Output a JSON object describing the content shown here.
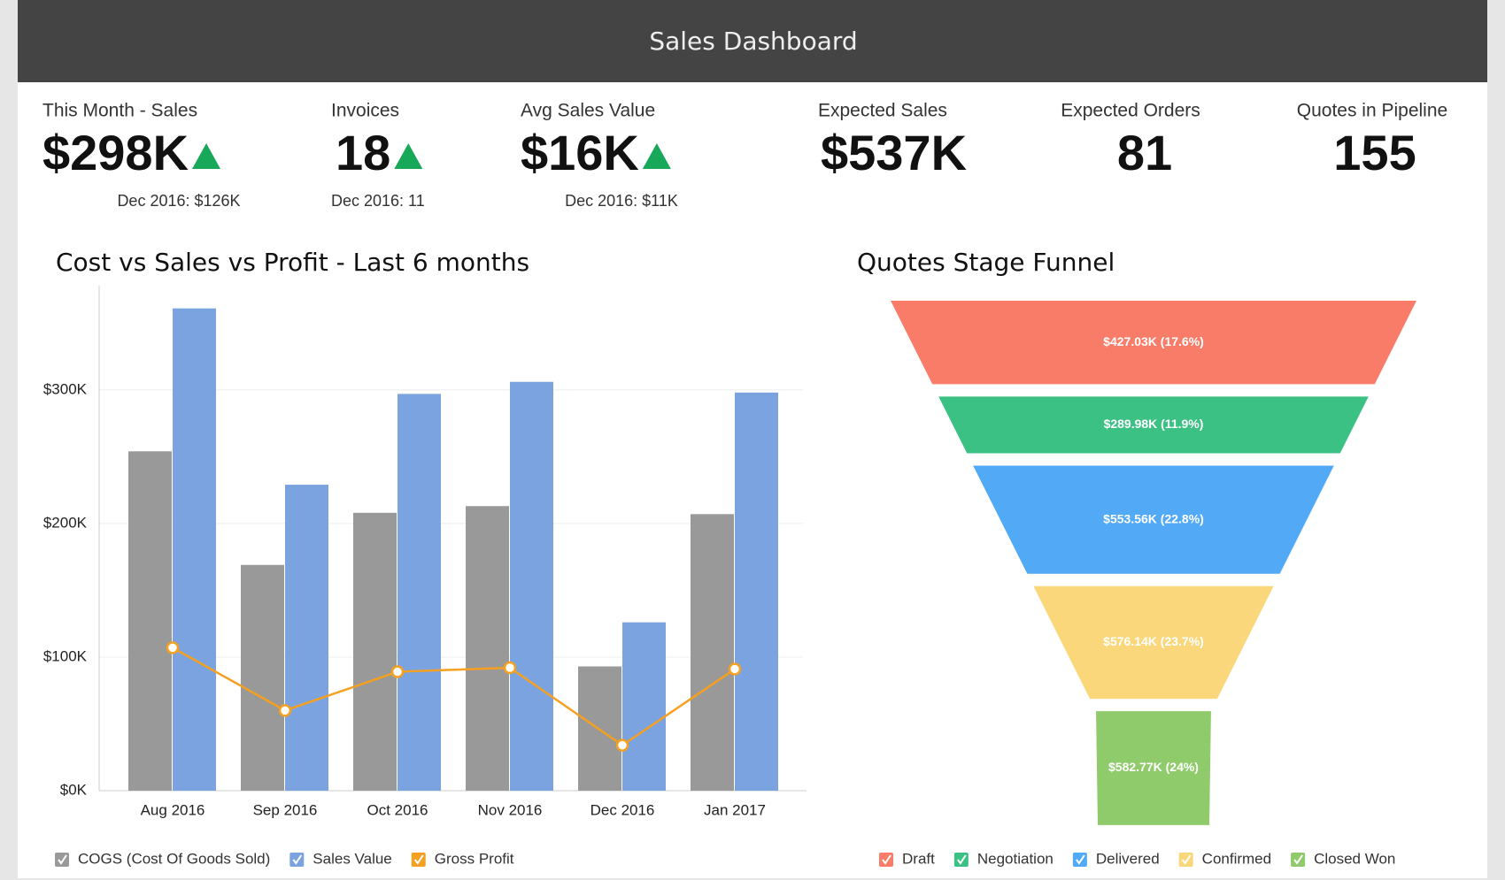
{
  "header": {
    "title": "Sales Dashboard"
  },
  "kpis": [
    {
      "label": "This Month - Sales",
      "value": "$298K",
      "previous": "Dec 2016: $126K",
      "trend": "up"
    },
    {
      "label": "Invoices",
      "value": "18",
      "previous": "Dec 2016: 11",
      "trend": "up"
    },
    {
      "label": "Avg Sales Value",
      "value": "$16K",
      "previous": "Dec 2016: $11K",
      "trend": "up"
    },
    {
      "label": "Expected Sales",
      "value": "$537K"
    },
    {
      "label": "Expected Orders",
      "value": "81"
    },
    {
      "label": "Quotes in Pipeline",
      "value": "155"
    }
  ],
  "chart_data": [
    {
      "type": "bar",
      "title": "Cost vs Sales vs Profit - Last 6 months",
      "categories": [
        "Aug 2016",
        "Sep 2016",
        "Oct 2016",
        "Nov 2016",
        "Dec 2016",
        "Jan 2017"
      ],
      "series": [
        {
          "name": "COGS (Cost Of Goods Sold)",
          "color": "#999999",
          "values": [
            254000,
            169000,
            208000,
            213000,
            93000,
            207000
          ]
        },
        {
          "name": "Sales Value",
          "color": "#7ba3e0",
          "values": [
            361000,
            229000,
            297000,
            306000,
            126000,
            298000
          ]
        },
        {
          "name": "Gross Profit",
          "color": "#f5a020",
          "type": "line",
          "values": [
            107000,
            60000,
            89000,
            92000,
            34000,
            91000
          ]
        }
      ],
      "ylim": [
        0,
        378000
      ],
      "yticks": [
        {
          "value": 0,
          "label": "$0K"
        },
        {
          "value": 100000,
          "label": "$100K"
        },
        {
          "value": 200000,
          "label": "$200K"
        },
        {
          "value": 300000,
          "label": "$300K"
        }
      ],
      "grid": true,
      "legend": "bottom-left"
    },
    {
      "type": "funnel",
      "title": "Quotes Stage Funnel",
      "categories": [
        "Draft",
        "Negotiation",
        "Delivered",
        "Confirmed",
        "Closed Won"
      ],
      "values": [
        427030,
        289980,
        553560,
        576140,
        582770
      ],
      "value_labels": [
        "$427.03K (17.6%)",
        "$289.98K (11.9%)",
        "$553.56K (22.8%)",
        "$576.14K (23.7%)",
        "$582.77K (24%)"
      ],
      "colors": [
        "#f87c67",
        "#3cc184",
        "#52a9f5",
        "#fad77a",
        "#8fcb6a"
      ],
      "legend": "bottom"
    }
  ]
}
